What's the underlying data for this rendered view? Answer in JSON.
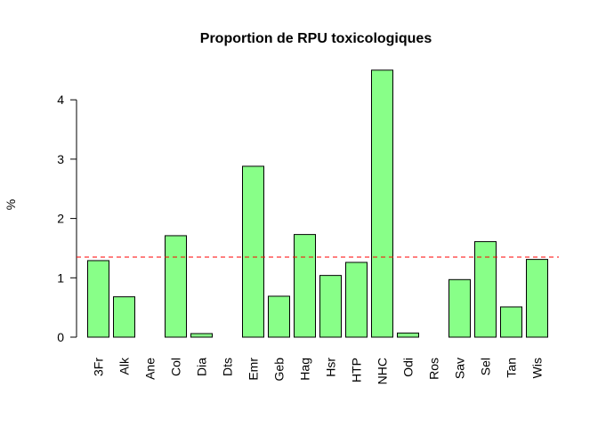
{
  "chart_data": {
    "type": "bar",
    "title": "Proportion de RPU toxicologiques",
    "xlabel": "",
    "ylabel": "%",
    "categories": [
      "3Fr",
      "Alk",
      "Ane",
      "Col",
      "Dia",
      "Dts",
      "Emr",
      "Geb",
      "Hag",
      "Hsr",
      "HTP",
      "NHC",
      "Odi",
      "Ros",
      "Sav",
      "Sel",
      "Tan",
      "Wis"
    ],
    "values": [
      1.29,
      0.68,
      0,
      1.71,
      0.06,
      0,
      2.88,
      0.69,
      1.73,
      1.04,
      1.26,
      4.5,
      0.07,
      0,
      0.97,
      1.61,
      0.51,
      1.31
    ],
    "yticks": [
      0,
      1,
      2,
      3,
      4
    ],
    "ylim": [
      0,
      4.5
    ],
    "reference_line": {
      "value": 1.35,
      "style": "dashed"
    },
    "grid": false,
    "colors": {
      "bar_fill": "#88FF88",
      "bar_stroke": "#000000",
      "reference_line": "#FF0000"
    }
  }
}
